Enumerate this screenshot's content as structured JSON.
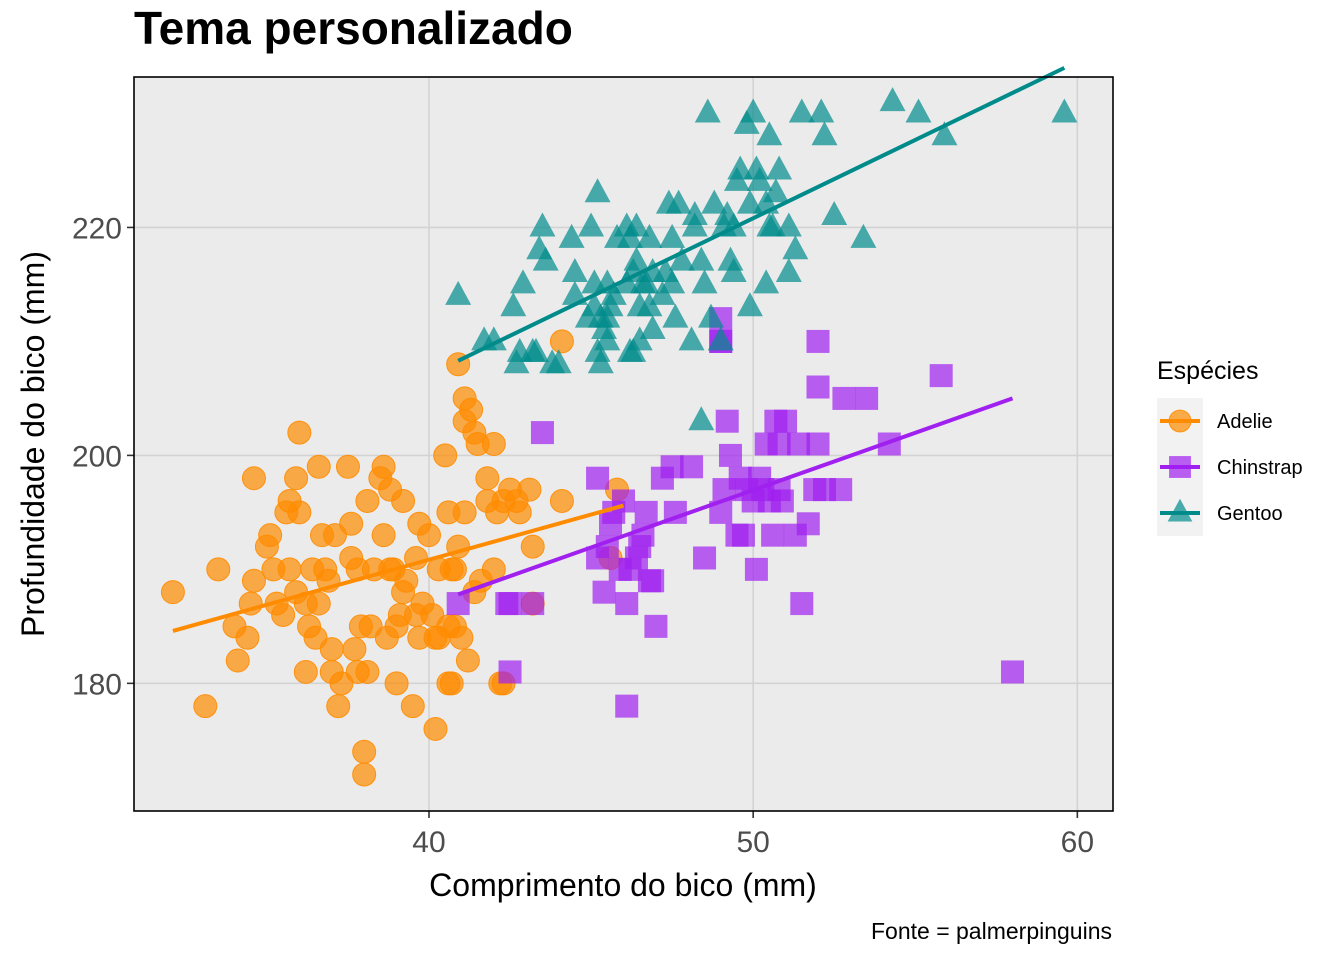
{
  "chart_data": {
    "type": "scatter",
    "title": "Tema personalizado",
    "xlabel": "Comprimento do bico (mm)",
    "ylabel": "Profundidade do bico (mm)",
    "caption": "Fonte = palmerpinguins",
    "xlim": [
      30.9,
      61.1
    ],
    "ylim": [
      168.8,
      233.2
    ],
    "xticks": [
      40,
      50,
      60
    ],
    "yticks": [
      180,
      200,
      220
    ],
    "grid": true,
    "legend": {
      "title": "Espécies",
      "placement": "right"
    },
    "series": [
      {
        "name": "Adelie",
        "color": "#FF8C00",
        "marker": "circle",
        "trend": {
          "x": [
            32.1,
            46.0
          ],
          "y": [
            184.6,
            195.6
          ]
        },
        "points": [
          [
            32.1,
            188
          ],
          [
            33.1,
            178
          ],
          [
            33.5,
            190
          ],
          [
            34.0,
            185
          ],
          [
            34.4,
            184
          ],
          [
            34.5,
            187
          ],
          [
            34.6,
            198
          ],
          [
            34.6,
            189
          ],
          [
            35.0,
            192
          ],
          [
            35.1,
            193
          ],
          [
            35.2,
            190
          ],
          [
            35.3,
            187
          ],
          [
            35.5,
            186
          ],
          [
            35.6,
            195
          ],
          [
            35.7,
            190
          ],
          [
            35.9,
            188
          ],
          [
            36.0,
            195
          ],
          [
            36.2,
            187
          ],
          [
            36.3,
            185
          ],
          [
            36.4,
            190
          ],
          [
            36.5,
            184
          ],
          [
            36.6,
            187
          ],
          [
            36.7,
            193
          ],
          [
            36.8,
            190
          ],
          [
            36.9,
            189
          ],
          [
            37.0,
            181
          ],
          [
            37.2,
            178
          ],
          [
            37.3,
            180
          ],
          [
            37.5,
            199
          ],
          [
            37.6,
            194
          ],
          [
            37.7,
            183
          ],
          [
            37.8,
            181
          ],
          [
            37.9,
            185
          ],
          [
            38.1,
            181
          ],
          [
            38.2,
            185
          ],
          [
            38.3,
            190
          ],
          [
            38.5,
            198
          ],
          [
            38.6,
            199
          ],
          [
            38.7,
            184
          ],
          [
            38.8,
            190
          ],
          [
            38.9,
            190
          ],
          [
            39.0,
            185
          ],
          [
            39.1,
            186
          ],
          [
            39.2,
            196
          ],
          [
            39.3,
            189
          ],
          [
            39.5,
            178
          ],
          [
            39.6,
            186
          ],
          [
            39.7,
            184
          ],
          [
            39.8,
            187
          ],
          [
            40.0,
            193
          ],
          [
            40.1,
            186
          ],
          [
            40.2,
            176
          ],
          [
            40.3,
            184
          ],
          [
            40.5,
            200
          ],
          [
            40.6,
            185
          ],
          [
            40.7,
            190
          ],
          [
            40.8,
            185
          ],
          [
            40.9,
            192
          ],
          [
            41.0,
            184
          ],
          [
            41.1,
            195
          ],
          [
            41.2,
            182
          ],
          [
            41.4,
            202
          ],
          [
            41.5,
            201
          ],
          [
            41.6,
            189
          ],
          [
            41.8,
            198
          ],
          [
            42.0,
            190
          ],
          [
            42.1,
            195
          ],
          [
            42.2,
            180
          ],
          [
            42.3,
            196
          ],
          [
            42.5,
            197
          ],
          [
            42.7,
            196
          ],
          [
            42.8,
            195
          ],
          [
            43.1,
            197
          ],
          [
            43.2,
            192
          ],
          [
            44.1,
            210
          ],
          [
            44.1,
            196
          ],
          [
            45.6,
            191
          ],
          [
            45.8,
            197
          ],
          [
            36.0,
            202
          ],
          [
            37.0,
            183
          ],
          [
            37.1,
            193
          ],
          [
            38.0,
            174
          ],
          [
            38.0,
            172
          ],
          [
            39.0,
            180
          ],
          [
            40.2,
            184
          ],
          [
            40.6,
            195
          ],
          [
            40.6,
            180
          ],
          [
            40.7,
            180
          ],
          [
            40.9,
            208
          ],
          [
            41.1,
            203
          ],
          [
            41.1,
            205
          ],
          [
            41.3,
            204
          ],
          [
            41.8,
            196
          ],
          [
            42.0,
            201
          ],
          [
            35.7,
            196
          ],
          [
            36.2,
            181
          ],
          [
            37.6,
            191
          ],
          [
            38.1,
            196
          ],
          [
            38.8,
            197
          ],
          [
            39.6,
            191
          ],
          [
            40.3,
            190
          ],
          [
            40.8,
            190
          ],
          [
            41.4,
            188
          ],
          [
            42.3,
            180
          ],
          [
            43.2,
            187
          ],
          [
            34.1,
            182
          ],
          [
            35.9,
            198
          ],
          [
            36.6,
            199
          ],
          [
            37.8,
            190
          ],
          [
            38.6,
            193
          ],
          [
            39.2,
            188
          ],
          [
            39.7,
            194
          ]
        ]
      },
      {
        "name": "Chinstrap",
        "color": "#A020F0",
        "marker": "square",
        "trend": {
          "x": [
            40.9,
            58.0
          ],
          "y": [
            187.8,
            205.0
          ]
        },
        "points": [
          [
            40.9,
            187
          ],
          [
            42.4,
            187
          ],
          [
            42.5,
            181
          ],
          [
            42.5,
            187
          ],
          [
            43.2,
            187
          ],
          [
            43.5,
            202
          ],
          [
            45.2,
            198
          ],
          [
            45.4,
            188
          ],
          [
            45.2,
            191
          ],
          [
            45.5,
            192
          ],
          [
            45.6,
            194
          ],
          [
            45.7,
            195
          ],
          [
            45.9,
            190
          ],
          [
            46.0,
            196
          ],
          [
            46.1,
            187
          ],
          [
            46.1,
            178
          ],
          [
            46.2,
            190
          ],
          [
            46.4,
            191
          ],
          [
            46.5,
            192
          ],
          [
            46.6,
            193
          ],
          [
            46.7,
            195
          ],
          [
            46.8,
            189
          ],
          [
            46.9,
            189
          ],
          [
            47.0,
            185
          ],
          [
            47.5,
            199
          ],
          [
            47.6,
            195
          ],
          [
            48.1,
            199
          ],
          [
            48.5,
            191
          ],
          [
            49.0,
            195
          ],
          [
            49.0,
            210
          ],
          [
            49.2,
            203
          ],
          [
            49.3,
            200
          ],
          [
            49.5,
            193
          ],
          [
            49.6,
            198
          ],
          [
            49.7,
            193
          ],
          [
            49.8,
            197
          ],
          [
            50.0,
            196
          ],
          [
            50.1,
            190
          ],
          [
            50.2,
            198
          ],
          [
            50.3,
            197
          ],
          [
            50.4,
            201
          ],
          [
            50.5,
            196
          ],
          [
            50.6,
            193
          ],
          [
            50.7,
            203
          ],
          [
            50.8,
            201
          ],
          [
            50.9,
            196
          ],
          [
            51.0,
            203
          ],
          [
            51.3,
            193
          ],
          [
            51.4,
            201
          ],
          [
            51.5,
            187
          ],
          [
            51.7,
            194
          ],
          [
            51.9,
            197
          ],
          [
            52.0,
            201
          ],
          [
            52.0,
            206
          ],
          [
            52.0,
            210
          ],
          [
            52.2,
            197
          ],
          [
            52.7,
            197
          ],
          [
            52.8,
            205
          ],
          [
            53.5,
            205
          ],
          [
            54.2,
            201
          ],
          [
            55.8,
            207
          ],
          [
            58.0,
            181
          ],
          [
            49.0,
            212
          ],
          [
            49.0,
            210
          ],
          [
            47.2,
            198
          ],
          [
            49.1,
            197
          ],
          [
            50.8,
            197
          ]
        ]
      },
      {
        "name": "Gentoo",
        "color": "#008B8B",
        "marker": "triangle",
        "trend": {
          "x": [
            40.9,
            59.6
          ],
          "y": [
            208.3,
            234.0
          ]
        },
        "points": [
          [
            40.9,
            214
          ],
          [
            41.7,
            210
          ],
          [
            42.0,
            210
          ],
          [
            42.6,
            213
          ],
          [
            42.7,
            208
          ],
          [
            42.8,
            209
          ],
          [
            42.9,
            215
          ],
          [
            43.2,
            209
          ],
          [
            43.3,
            209
          ],
          [
            43.4,
            218
          ],
          [
            43.5,
            220
          ],
          [
            43.6,
            217
          ],
          [
            43.8,
            208
          ],
          [
            44.0,
            208
          ],
          [
            44.4,
            219
          ],
          [
            44.5,
            216
          ],
          [
            44.9,
            212
          ],
          [
            45.0,
            220
          ],
          [
            45.1,
            215
          ],
          [
            45.2,
            209
          ],
          [
            45.2,
            223
          ],
          [
            45.3,
            208
          ],
          [
            45.4,
            211
          ],
          [
            45.5,
            210
          ],
          [
            45.5,
            212
          ],
          [
            45.7,
            214
          ],
          [
            45.8,
            219
          ],
          [
            46.1,
            220
          ],
          [
            46.2,
            209
          ],
          [
            46.3,
            209
          ],
          [
            46.4,
            217
          ],
          [
            46.5,
            210
          ],
          [
            46.7,
            215
          ],
          [
            46.8,
            219
          ],
          [
            46.9,
            216
          ],
          [
            47.2,
            214
          ],
          [
            47.3,
            216
          ],
          [
            47.4,
            222
          ],
          [
            47.5,
            215
          ],
          [
            47.6,
            212
          ],
          [
            47.7,
            222
          ],
          [
            48.1,
            210
          ],
          [
            48.2,
            221
          ],
          [
            48.4,
            203
          ],
          [
            48.5,
            215
          ],
          [
            48.6,
            230
          ],
          [
            48.7,
            212
          ],
          [
            48.8,
            222
          ],
          [
            49.0,
            210
          ],
          [
            49.1,
            220
          ],
          [
            49.2,
            221
          ],
          [
            49.3,
            217
          ],
          [
            49.4,
            216
          ],
          [
            49.5,
            224
          ],
          [
            49.6,
            225
          ],
          [
            49.8,
            229
          ],
          [
            49.9,
            213
          ],
          [
            50.0,
            230
          ],
          [
            50.1,
            225
          ],
          [
            50.2,
            224
          ],
          [
            50.4,
            222
          ],
          [
            50.5,
            228
          ],
          [
            50.6,
            220
          ],
          [
            50.7,
            223
          ],
          [
            50.8,
            225
          ],
          [
            51.1,
            220
          ],
          [
            51.3,
            218
          ],
          [
            51.5,
            230
          ],
          [
            52.1,
            230
          ],
          [
            52.2,
            228
          ],
          [
            52.5,
            221
          ],
          [
            53.4,
            219
          ],
          [
            54.3,
            231
          ],
          [
            55.1,
            230
          ],
          [
            55.9,
            228
          ],
          [
            59.6,
            230
          ],
          [
            46.2,
            219
          ],
          [
            46.8,
            213
          ],
          [
            47.5,
            219
          ],
          [
            45.5,
            215
          ],
          [
            44.5,
            214
          ],
          [
            46.5,
            213
          ],
          [
            46.1,
            215
          ],
          [
            45.1,
            213
          ],
          [
            46.9,
            211
          ],
          [
            48.2,
            220
          ],
          [
            50.5,
            220
          ],
          [
            51.1,
            216
          ],
          [
            49.4,
            220
          ],
          [
            48.4,
            217
          ],
          [
            49.9,
            222
          ],
          [
            46.4,
            220
          ],
          [
            46.3,
            216
          ],
          [
            47.8,
            217
          ],
          [
            46.6,
            215
          ],
          [
            45.3,
            212
          ],
          [
            45.6,
            213
          ],
          [
            50.4,
            215
          ]
        ]
      }
    ]
  }
}
